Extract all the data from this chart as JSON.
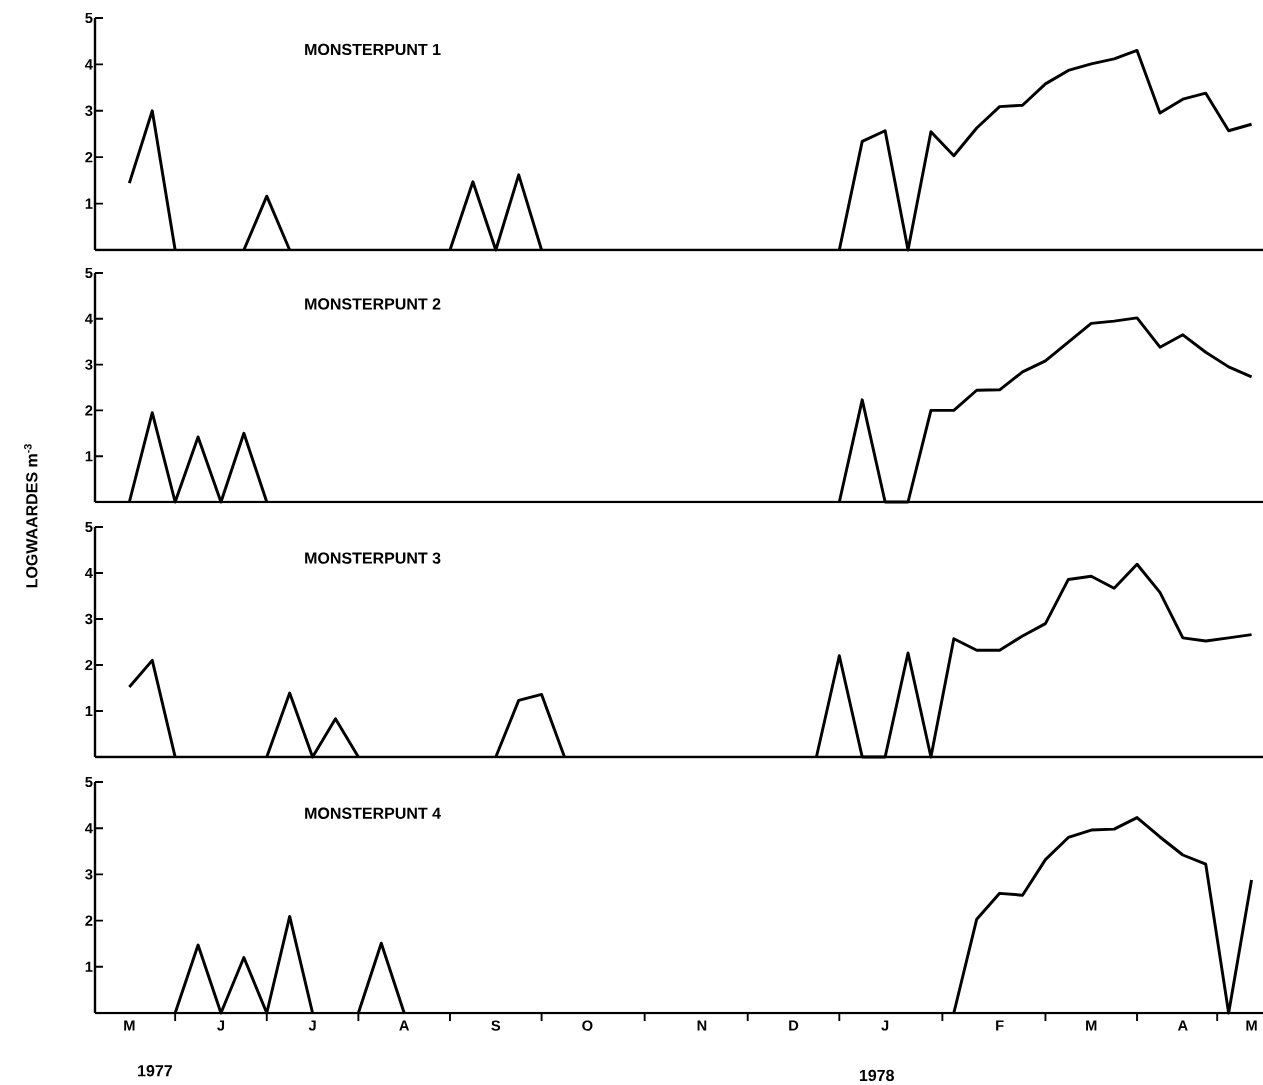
{
  "chart_data": [
    {
      "type": "line",
      "title": "MONSTERPUNT  1",
      "categories": [
        null,
        null,
        null,
        null,
        null,
        null,
        null,
        null,
        null,
        null,
        null,
        null,
        null,
        null,
        null,
        null,
        null,
        null,
        null,
        null,
        null,
        null,
        null,
        null,
        null,
        null,
        null,
        null,
        null,
        null,
        null,
        null,
        null,
        null,
        null,
        null,
        null,
        null,
        null,
        null,
        null,
        null,
        null,
        null,
        null,
        null,
        null,
        null,
        null,
        null,
        null
      ],
      "ylim": [
        0,
        5
      ],
      "yticks": [
        1,
        2,
        3,
        4,
        5
      ],
      "tick_labels": "y",
      "series": [
        {
          "color": "#000000",
          "values": [
            null,
            1.44,
            3.0,
            0,
            null,
            null,
            0,
            1.16,
            0,
            null,
            null,
            null,
            null,
            null,
            null,
            0,
            1.47,
            0,
            1.62,
            0,
            null,
            null,
            null,
            null,
            null,
            null,
            null,
            null,
            null,
            null,
            null,
            null,
            0,
            2.34,
            2.57,
            0,
            2.55,
            2.03,
            2.63,
            3.09,
            3.12,
            3.58,
            3.87,
            4.01,
            4.12,
            4.3,
            2.95,
            3.25,
            3.38,
            2.57,
            2.71
          ]
        }
      ]
    },
    {
      "type": "line",
      "title": "MONSTERPUNT  2",
      "ylabel": "LOGWAARDES  m$^{-3}$",
      "categories": [
        null,
        null,
        null,
        null,
        null,
        null,
        null,
        null,
        null,
        null,
        null,
        null,
        null,
        null,
        null,
        null,
        null,
        null,
        null,
        null,
        null,
        null,
        null,
        null,
        null,
        null,
        null,
        null,
        null,
        null,
        null,
        null,
        null,
        null,
        null,
        null,
        null,
        null,
        null,
        null,
        null,
        null,
        null,
        null,
        null,
        null,
        null,
        null,
        null,
        null,
        null
      ],
      "ylim": [
        0,
        5
      ],
      "yticks": [
        1,
        2,
        3,
        4,
        5
      ],
      "tick_labels": "y",
      "series": [
        {
          "color": "#000000",
          "values": [
            null,
            0,
            1.95,
            0,
            1.42,
            0,
            1.5,
            0,
            null,
            null,
            null,
            null,
            null,
            null,
            null,
            null,
            null,
            null,
            null,
            null,
            null,
            null,
            null,
            null,
            null,
            null,
            null,
            null,
            null,
            null,
            null,
            null,
            0,
            2.23,
            0,
            0,
            2.0,
            2.0,
            2.44,
            2.45,
            2.84,
            3.08,
            3.49,
            3.9,
            3.95,
            4.02,
            3.38,
            3.65,
            3.27,
            2.95,
            2.73
          ]
        }
      ]
    },
    {
      "type": "line",
      "title": "MONSTERPUNT  3",
      "categories": [
        null,
        null,
        null,
        null,
        null,
        null,
        null,
        null,
        null,
        null,
        null,
        null,
        null,
        null,
        null,
        null,
        null,
        null,
        null,
        null,
        null,
        null,
        null,
        null,
        null,
        null,
        null,
        null,
        null,
        null,
        null,
        null,
        null,
        null,
        null,
        null,
        null,
        null,
        null,
        null,
        null,
        null,
        null,
        null,
        null,
        null,
        null,
        null,
        null,
        null,
        null
      ],
      "ylim": [
        0,
        5
      ],
      "yticks": [
        1,
        2,
        3,
        4,
        5
      ],
      "tick_labels": "y",
      "series": [
        {
          "color": "#000000",
          "values": [
            null,
            1.52,
            2.1,
            0,
            null,
            null,
            null,
            0,
            1.39,
            0,
            0.83,
            0,
            null,
            null,
            null,
            null,
            null,
            0,
            1.23,
            1.36,
            0,
            null,
            null,
            null,
            null,
            null,
            null,
            null,
            null,
            null,
            null,
            0,
            2.2,
            0,
            0,
            2.26,
            0,
            2.57,
            2.32,
            2.32,
            2.63,
            2.9,
            3.86,
            3.93,
            3.67,
            4.19,
            3.58,
            2.59,
            2.52,
            2.59,
            2.66
          ]
        }
      ]
    },
    {
      "type": "line",
      "title": "MONSTERPUNT  4",
      "categories": [
        null,
        "M",
        null,
        null,
        null,
        "J",
        null,
        null,
        null,
        "J",
        null,
        null,
        null,
        "A",
        null,
        null,
        null,
        "S",
        null,
        null,
        null,
        "O",
        null,
        null,
        null,
        null,
        "N",
        null,
        null,
        null,
        "D",
        null,
        null,
        null,
        "J",
        null,
        null,
        null,
        null,
        "F",
        null,
        null,
        null,
        "M",
        null,
        null,
        null,
        "A",
        null,
        null,
        "M"
      ],
      "ylim": [
        0,
        5
      ],
      "yticks": [
        1,
        2,
        3,
        4,
        5
      ],
      "annotations": [
        "1977",
        "1978"
      ],
      "series": [
        {
          "color": "#000000",
          "values": [
            null,
            null,
            null,
            0,
            1.47,
            0,
            1.2,
            0,
            2.09,
            0,
            null,
            0,
            1.51,
            0,
            null,
            null,
            null,
            null,
            null,
            null,
            null,
            null,
            null,
            null,
            null,
            null,
            null,
            null,
            null,
            null,
            null,
            null,
            null,
            null,
            null,
            null,
            null,
            0,
            2.03,
            2.59,
            2.55,
            3.32,
            3.8,
            3.96,
            3.98,
            4.23,
            3.81,
            3.42,
            3.22,
            0,
            2.88
          ]
        }
      ]
    }
  ]
}
